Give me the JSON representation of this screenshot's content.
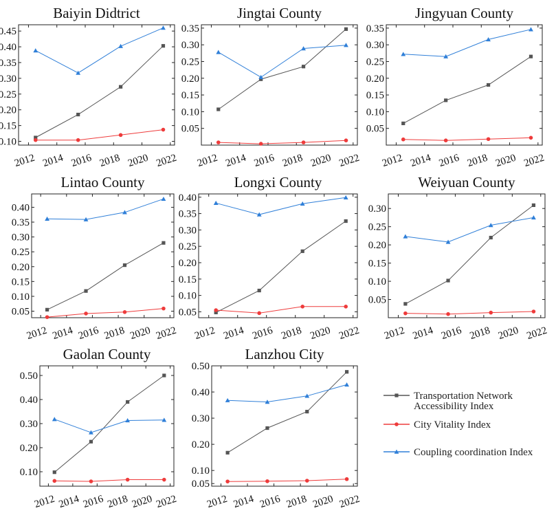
{
  "series_styles": {
    "transport": {
      "color": "#555555",
      "marker": "square"
    },
    "vitality": {
      "color": "#ee3b3b",
      "marker": "circle"
    },
    "coupling": {
      "color": "#2f7fd8",
      "marker": "triangle"
    }
  },
  "legend": [
    {
      "key": "transport",
      "lines": [
        "Transportation Network",
        "Accessibility Index"
      ]
    },
    {
      "key": "vitality",
      "lines": [
        "City Vitality Index"
      ]
    },
    {
      "key": "coupling",
      "lines": [
        "Coupling coordination Index"
      ]
    }
  ],
  "chart_data": [
    {
      "type": "line",
      "title": "Baiyin Didtrict",
      "x": [
        2012.5,
        2015.5,
        2018.5,
        2021.5
      ],
      "xlim": [
        2011.3,
        2022.3
      ],
      "xticks": [
        "2012",
        "2014",
        "2016",
        "2018",
        "2020",
        "2022"
      ],
      "ylim": [
        0.088,
        0.47
      ],
      "yticks": [
        "0.10",
        "0.15",
        "0.20",
        "0.25",
        "0.30",
        "0.35",
        "0.40",
        "0.45"
      ],
      "series": [
        {
          "key": "transport",
          "name": "Transportation Network Accessibility Index",
          "values": [
            0.112,
            0.185,
            0.273,
            0.403
          ]
        },
        {
          "key": "vitality",
          "name": "City Vitality Index",
          "values": [
            0.104,
            0.104,
            0.12,
            0.137
          ]
        },
        {
          "key": "coupling",
          "name": "Coupling coordination Index",
          "values": [
            0.388,
            0.317,
            0.402,
            0.46
          ]
        }
      ]
    },
    {
      "type": "line",
      "title": "Jingtai County",
      "x": [
        2012.5,
        2015.5,
        2018.5,
        2021.5
      ],
      "xlim": [
        2011.3,
        2022.3
      ],
      "xticks": [
        "2012",
        "2014",
        "2016",
        "2018",
        "2020",
        "2022"
      ],
      "ylim": [
        0.0,
        0.36
      ],
      "yticks": [
        "0.05",
        "0.10",
        "0.15",
        "0.20",
        "0.25",
        "0.30",
        "0.35"
      ],
      "series": [
        {
          "key": "transport",
          "name": "Transportation Network Accessibility Index",
          "values": [
            0.107,
            0.197,
            0.235,
            0.347
          ]
        },
        {
          "key": "vitality",
          "name": "City Vitality Index",
          "values": [
            0.008,
            0.004,
            0.008,
            0.014
          ]
        },
        {
          "key": "coupling",
          "name": "Coupling coordination Index",
          "values": [
            0.278,
            0.203,
            0.289,
            0.299
          ]
        }
      ]
    },
    {
      "type": "line",
      "title": "Jingyuan County",
      "x": [
        2012.5,
        2015.5,
        2018.5,
        2021.5
      ],
      "xlim": [
        2011.3,
        2022.3
      ],
      "xticks": [
        "2012",
        "2014",
        "2016",
        "2018",
        "2020",
        "2022"
      ],
      "ylim": [
        0.0,
        0.36
      ],
      "yticks": [
        "0.05",
        "0.10",
        "0.15",
        "0.20",
        "0.25",
        "0.30",
        "0.35"
      ],
      "series": [
        {
          "key": "transport",
          "name": "Transportation Network Accessibility Index",
          "values": [
            0.065,
            0.134,
            0.18,
            0.265
          ]
        },
        {
          "key": "vitality",
          "name": "City Vitality Index",
          "values": [
            0.017,
            0.014,
            0.018,
            0.022
          ]
        },
        {
          "key": "coupling",
          "name": "Coupling coordination Index",
          "values": [
            0.272,
            0.265,
            0.316,
            0.346
          ]
        }
      ]
    },
    {
      "type": "line",
      "title": "Lintao County",
      "x": [
        2012.5,
        2015.5,
        2018.5,
        2021.5
      ],
      "xlim": [
        2011.3,
        2022.3
      ],
      "xticks": [
        "2012",
        "2014",
        "2016",
        "2018",
        "2020",
        "2022"
      ],
      "ylim": [
        0.028,
        0.445
      ],
      "yticks": [
        "0.05",
        "0.10",
        "0.15",
        "0.20",
        "0.25",
        "0.30",
        "0.35",
        "0.40"
      ],
      "series": [
        {
          "key": "transport",
          "name": "Transportation Network Accessibility Index",
          "values": [
            0.055,
            0.118,
            0.205,
            0.28
          ]
        },
        {
          "key": "vitality",
          "name": "City Vitality Index",
          "values": [
            0.03,
            0.042,
            0.047,
            0.059
          ]
        },
        {
          "key": "coupling",
          "name": "Coupling coordination Index",
          "values": [
            0.361,
            0.359,
            0.383,
            0.428
          ]
        }
      ]
    },
    {
      "type": "line",
      "title": "Longxi County",
      "x": [
        2012.5,
        2015.5,
        2018.5,
        2021.5
      ],
      "xlim": [
        2011.3,
        2022.3
      ],
      "xticks": [
        "2012",
        "2014",
        "2016",
        "2018",
        "2020",
        "2022"
      ],
      "ylim": [
        0.032,
        0.41
      ],
      "yticks": [
        "0.05",
        "0.10",
        "0.15",
        "0.20",
        "0.25",
        "0.30",
        "0.35",
        "0.40"
      ],
      "series": [
        {
          "key": "transport",
          "name": "Transportation Network Accessibility Index",
          "values": [
            0.048,
            0.115,
            0.235,
            0.327
          ]
        },
        {
          "key": "vitality",
          "name": "City Vitality Index",
          "values": [
            0.055,
            0.046,
            0.066,
            0.066
          ]
        },
        {
          "key": "coupling",
          "name": "Coupling coordination Index",
          "values": [
            0.382,
            0.347,
            0.38,
            0.399
          ]
        }
      ]
    },
    {
      "type": "line",
      "title": "Weiyuan County",
      "x": [
        2012.5,
        2015.5,
        2018.5,
        2021.5
      ],
      "xlim": [
        2011.3,
        2022.3
      ],
      "xticks": [
        "2012",
        "2014",
        "2016",
        "2018",
        "2020",
        "2022"
      ],
      "ylim": [
        0.0,
        0.34
      ],
      "yticks": [
        "0.05",
        "0.10",
        "0.15",
        "0.20",
        "0.25",
        "0.30"
      ],
      "series": [
        {
          "key": "transport",
          "name": "Transportation Network Accessibility Index",
          "values": [
            0.038,
            0.102,
            0.22,
            0.309
          ]
        },
        {
          "key": "vitality",
          "name": "City Vitality Index",
          "values": [
            0.012,
            0.01,
            0.014,
            0.017
          ]
        },
        {
          "key": "coupling",
          "name": "Coupling coordination Index",
          "values": [
            0.223,
            0.208,
            0.254,
            0.275
          ]
        }
      ]
    },
    {
      "type": "line",
      "title": "Gaolan County",
      "x": [
        2012.5,
        2015.5,
        2018.5,
        2021.5
      ],
      "xlim": [
        2011.3,
        2022.3
      ],
      "xticks": [
        "2012",
        "2014",
        "2016",
        "2018",
        "2020",
        "2022"
      ],
      "ylim": [
        0.04,
        0.54
      ],
      "yticks": [
        "0.10",
        "0.20",
        "0.30",
        "0.40",
        "0.50"
      ],
      "series": [
        {
          "key": "transport",
          "name": "Transportation Network Accessibility Index",
          "values": [
            0.098,
            0.225,
            0.39,
            0.5
          ]
        },
        {
          "key": "vitality",
          "name": "City Vitality Index",
          "values": [
            0.062,
            0.06,
            0.067,
            0.067
          ]
        },
        {
          "key": "coupling",
          "name": "Coupling coordination Index",
          "values": [
            0.318,
            0.263,
            0.313,
            0.315
          ]
        }
      ]
    },
    {
      "type": "line",
      "title": "Lanzhou City",
      "x": [
        2012.5,
        2015.5,
        2018.5,
        2021.5
      ],
      "xlim": [
        2011.3,
        2022.3
      ],
      "xticks": [
        "2012",
        "2014",
        "2016",
        "2018",
        "2020",
        "2022"
      ],
      "ylim": [
        0.04,
        0.5
      ],
      "yticks": [
        "0.05",
        "0.10",
        "0.20",
        "0.30",
        "0.40",
        "0.50"
      ],
      "series": [
        {
          "key": "transport",
          "name": "Transportation Network Accessibility Index",
          "values": [
            0.168,
            0.262,
            0.325,
            0.477
          ]
        },
        {
          "key": "vitality",
          "name": "City Vitality Index",
          "values": [
            0.058,
            0.059,
            0.061,
            0.067
          ]
        },
        {
          "key": "coupling",
          "name": "Coupling coordination Index",
          "values": [
            0.368,
            0.362,
            0.385,
            0.428
          ]
        }
      ]
    }
  ]
}
